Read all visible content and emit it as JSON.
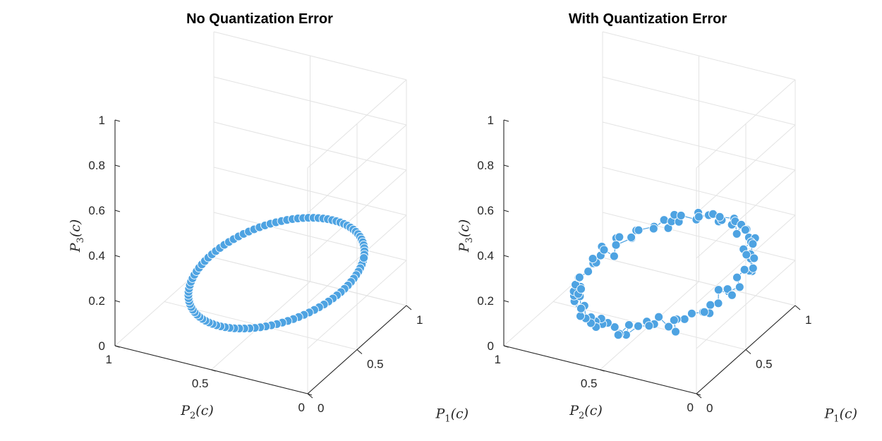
{
  "colors": {
    "marker": "#4ea3e2",
    "marker_edge": "#ffffff",
    "axis": "#262626",
    "grid": "#e3e3e3"
  },
  "chart_data": [
    {
      "type": "scatter",
      "title": "No Quantization Error",
      "xlabel": "P_1(c)",
      "ylabel": "P_2(c)",
      "zlabel": "P_3(c)",
      "xlim": [
        0,
        1
      ],
      "ylim": [
        0,
        1
      ],
      "zlim": [
        0,
        1
      ],
      "xticks": [
        "0",
        "0.5",
        "1"
      ],
      "yticks": [
        "0",
        "0.5",
        "1"
      ],
      "zticks": [
        "0",
        "0.2",
        "0.4",
        "0.6",
        "0.8",
        "1"
      ],
      "grid": true,
      "ring": {
        "center": [
          0.333,
          0.333,
          0.333
        ],
        "radius": 0.42,
        "points": 100,
        "quantization_noise": 0
      }
    },
    {
      "type": "scatter",
      "title": "With Quantization Error",
      "xlabel": "P_1(c)",
      "ylabel": "P_2(c)",
      "zlabel": "P_3(c)",
      "xlim": [
        0,
        1
      ],
      "ylim": [
        0,
        1
      ],
      "zlim": [
        0,
        1
      ],
      "xticks": [
        "0",
        "0.5",
        "1"
      ],
      "yticks": [
        "0",
        "0.5",
        "1"
      ],
      "zticks": [
        "0",
        "0.2",
        "0.4",
        "0.6",
        "0.8",
        "1"
      ],
      "grid": true,
      "connected": true,
      "ring": {
        "center": [
          0.333,
          0.333,
          0.333
        ],
        "radius": 0.42,
        "points": 100,
        "quantization_noise": 0.03
      }
    }
  ]
}
